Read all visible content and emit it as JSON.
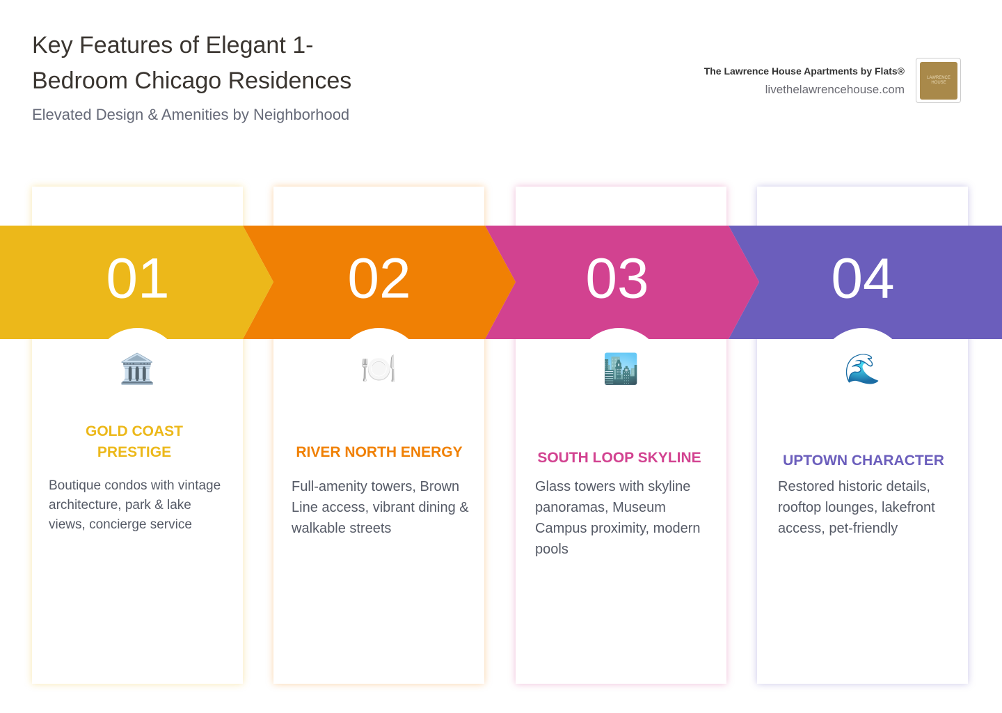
{
  "header": {
    "title": "Key Features of Elegant 1-Bedroom Chicago Residences",
    "subtitle": "Elevated Design & Amenities by Neighborhood"
  },
  "brand": {
    "name": "The Lawrence House Apartments by Flats®",
    "url": "livethelawrencehouse.com",
    "logo_text": "LAWRENCE HOUSE"
  },
  "steps": [
    {
      "number": "01",
      "icon": "🏛️",
      "title": "GOLD COAST PRESTIGE",
      "text": "Boutique condos with vintage architecture, park & lake views, concierge service"
    },
    {
      "number": "02",
      "icon": "🍽️",
      "title": "RIVER NORTH ENERGY",
      "text": "Full-amenity towers, Brown Line access, vibrant dining & walkable streets"
    },
    {
      "number": "03",
      "icon": "🏙️",
      "title": "SOUTH LOOP SKYLINE",
      "text": "Glass towers with skyline panoramas, Museum Campus proximity, modern pools"
    },
    {
      "number": "04",
      "icon": "🌊",
      "title": "UPTOWN CHARACTER",
      "text": "Restored historic details, rooftop lounges, lakefront access, pet-friendly"
    }
  ]
}
